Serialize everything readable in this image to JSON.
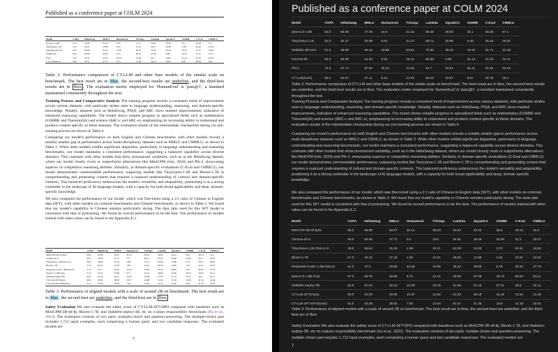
{
  "header": "Published as a conference paper at COLM 2024",
  "page_number": "7",
  "table2": {
    "columns": [
      "Model",
      "COPA",
      "HellaSwag",
      "MMLU",
      "Humaneval",
      "Triviaqa",
      "Lambda",
      "Squad2.0",
      "GSM8k",
      "C-Eval",
      "CMMLU"
    ],
    "rows": [
      [
        "Qwen1.5-1.8B",
        "53.0",
        "55.99",
        "47.06",
        "18.9",
        "31.15",
        "56.39",
        "30.06",
        "35.1",
        "59.38",
        "57.1"
      ],
      [
        "TinyLlama-1.1B",
        "51.0",
        "54.47",
        "25.89",
        "8.54",
        "31.27",
        "59.71",
        "20.85",
        "5.36",
        "26.16",
        "25.04"
      ],
      [
        "Stablelm-3b-4e1t",
        "61.0",
        "69.08",
        "45.42",
        "15.85",
        "50.54",
        "70.35",
        "36.44",
        "10.92",
        "31.71",
        "31.48"
      ],
      [
        "Gemma-2b",
        "64.0",
        "64.96",
        "41.84",
        "9.15",
        "46.42",
        "63.38",
        "6.86",
        "22.14",
        "31.25",
        "31.11"
      ],
      [
        "Phi-2",
        "72.0",
        "67.74",
        "57.62",
        "40.24",
        "41.04",
        "62.7",
        "34.81",
        "61.41",
        "31.53",
        "32.19"
      ],
      [
        "CT-LLM(Ours)",
        "59.0",
        "50.37",
        "37.11",
        "9.15",
        "21.03",
        "56.24",
        "18.87",
        "8.87",
        "36.78",
        "36.4"
      ]
    ],
    "caption_a": "Table 2: Performance comparison of CT-LLM and other base models of the similar scale on benchmark. The best result are in ",
    "blue": "blue",
    "caption_b": ", the second-best results are ",
    "underline": "underline",
    "caption_c": ", and the third-best results are in ",
    "fbox": "fbox",
    "caption_d": ". The evaluation metric employed for 'HumanEval' is 'pass@1', a standard maintained consistently throughout the text."
  },
  "training": {
    "title": "Training Process and Comparative Analysis",
    "text": " The training progress reveals a consistent trend of improvement across various datasets, with particular strides seen in language understanding, reasoning, and domain-specific knowledge. Notably, datasets such as HellaSwag, PIQA, and ARC show marked improvements, indicative of enhanced reasoning capabilities. The model shows notable progress in specialized fields such as mathematics (GSM8K and TheoremQA) and science (ARC-c and ARC-e), emphasizing its increasing ability to understand and produce content specific to these domains. The evaluation results of the intermediate checkpoints during our pre-training process are shown in Table.4."
  },
  "comparing": "Comparing our model's performance on both English and Chinese benchmarks with other models reveals a notably smaller gap in performance across multi-disciplinary datasets such as MMLU and CMMLU, as shown in Table 2. While other models exhibit significant disparities, particularly in language understanding and reasoning benchmarks, our model maintains a consistent performance, suggesting a balanced capability across diverse domains. This contrasts with other models that show pronounced variability, such as in the HellaSwag dataset, where our model closely rivals or outperforms alternatives like MiniCPM (min, 2024) and Phi-2, showcasing superior or competitive reasoning abilities. Similarly, in domain-specific evaluations (C-Eval and CMMLU), our model demonstrates commendable performance, outpacing models like TinyLlama-1.1B and Bloom-1.7B in comprehending and generating content that requires a nuanced understanding of cultural and domain-specific contexts. This balanced proficiency underscores the model's versatility and adaptability, positioning it as a strong contender in the landscape of AI language models, with a capacity for both broad applicability and deep, domain-specific knowledge.",
  "sft": "We also compared the performance of our model, which was fine-tuned using a 2:1 ratio of Chinese to English data (SFT), with other models on common benchmarks and Chinese benchmarks, as shown in Table.3. We found that our model's capability in Chinese remains particularly strong. The data ratio used for this SFT model is consistent with that of pretraining. We found its overall performance to be the best. The performance of models trained with other ratios can be found in the Appendix.E.2.",
  "table3": {
    "columns": [
      "Model",
      "COPA",
      "HellaSwag",
      "MMLU",
      "Humaneval",
      "Triviaqa",
      "Lambda",
      "Squad2.0",
      "GSM8k",
      "C-Eval",
      "CMMLU"
    ],
    "rows": [
      [
        "MiniCPM-2B-sft-fp32",
        "66.0",
        "65.88",
        "53.87",
        "45.12",
        "36.23",
        "60.62",
        "40.52",
        "55.8",
        "49.14",
        "51.0"
      ],
      [
        "Gemma-2b-it",
        "60.0",
        "56.68",
        "37.71",
        "0.0",
        "29.0",
        "55.91",
        "18.46",
        "15.69",
        "32.3",
        "33.07"
      ],
      [
        "TinyLlama-1.1B-Chat-v1.0",
        "48.0",
        "56.64",
        "25.33",
        "4.88",
        "15.21",
        "61.09",
        "12.89",
        "3.72",
        "24.51",
        "24.92"
      ],
      [
        "Bloom-1.7B",
        "57.0",
        "44.42",
        "27.33",
        "1.83",
        "24.31",
        "48.56",
        "14.89",
        "1.54",
        "22.51",
        "24.25"
      ],
      [
        "Deepseek-Coder-1.3B-instruct",
        "51.0",
        "37.0",
        "28.55",
        "43.29",
        "10.85",
        "35.32",
        "28.85",
        "8.79",
        "28.33",
        "27.75"
      ],
      [
        "Qwen1.5-1.8B-Chat",
        "57.0",
        "55.75",
        "45.86",
        "6.71",
        "24.31",
        "48.83",
        "47.08",
        "28.73",
        "56.84",
        "54.11"
      ],
      [
        "Stablelm-zephyr-3B",
        "64.0",
        "67.94",
        "46.15",
        "24.39",
        "33.48",
        "57.65",
        "21.19",
        "57.01",
        "29.5",
        "32.11"
      ],
      [
        "CT-LLM-SFT(Ours)",
        "60.0",
        "52.93",
        "39.95",
        "10.37",
        "22.88",
        "51.93",
        "35.18",
        "19.18",
        "41.54",
        "41.48"
      ],
      [
        "CT-LLM-SFT-DPO(Ours)",
        "61.0",
        "53.38",
        "39.82",
        "7.93",
        "23.64",
        "51.47",
        "31.36",
        "18.8",
        "41.18",
        "42.01"
      ]
    ],
    "caption_a": "Table 3: Performance of aligned models with a scale of around 2B on benchmark. The best result are in ",
    "blue": "blue",
    "caption_b": ", the second-best are ",
    "underline": "underline",
    "caption_c": ", and the third-best are in ",
    "fbox": "fbox"
  },
  "safety": {
    "title": "Safety Evaluation",
    "text_a": " We also evaluate the safety score of CT-LLM-SFT-DPO compared with baselines such as MiniCPM-2B-sft-fp, Bloom-1.7B, and Stablelm-zephyr-3B, etc on cvalues responsibility benchmark (",
    "cite": "Xu et al., 2023",
    "text_b": "). The evaluation consists of two parts: multiple-choice and question-answering. The multiple-choice part includes 1,712 input examples, each comprising a human query and two candidate responses. The evaluated models are"
  },
  "colors": {
    "highlight": "#aee0f0",
    "dark_bg": "#1c1c1c",
    "cite": "#7a2a8a"
  }
}
